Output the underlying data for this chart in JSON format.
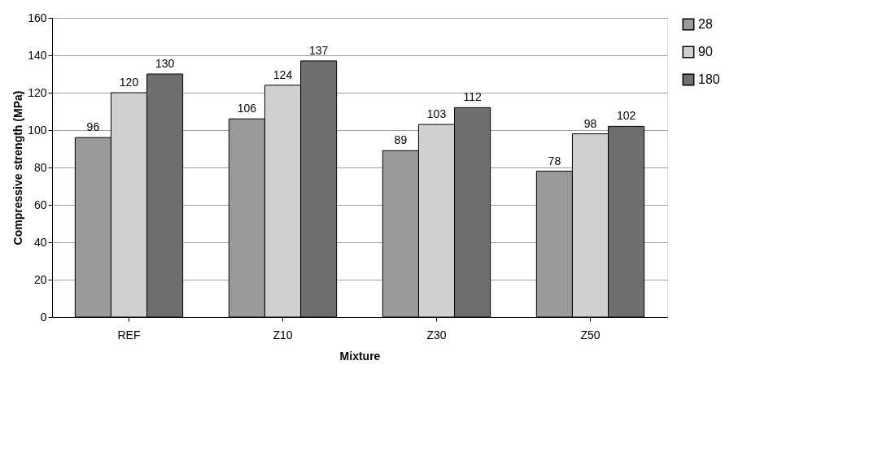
{
  "chart_data": {
    "type": "bar",
    "xlabel": "Mixture",
    "ylabel": "Compressive strength (MPa)",
    "categories": [
      "REF",
      "Z10",
      "Z30",
      "Z50"
    ],
    "series": [
      {
        "name": "28",
        "color": "#9a9a9a",
        "values": [
          96,
          106,
          89,
          78
        ]
      },
      {
        "name": "90",
        "color": "#d0d0d0",
        "values": [
          120,
          124,
          103,
          98
        ]
      },
      {
        "name": "180",
        "color": "#6e6e6e",
        "values": [
          130,
          137,
          112,
          102
        ]
      }
    ],
    "ylim": [
      0,
      160
    ],
    "yticks": [
      0,
      20,
      40,
      60,
      80,
      100,
      120,
      140,
      160
    ],
    "grid": "y",
    "legend": "right",
    "data_labels": true
  }
}
